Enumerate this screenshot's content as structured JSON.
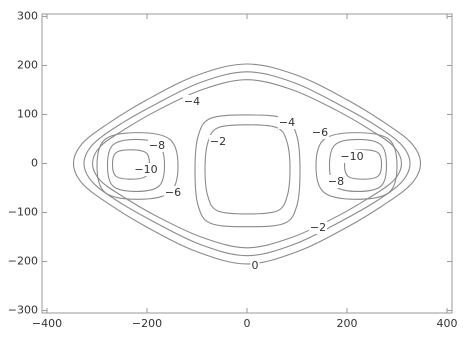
{
  "chart_data": {
    "type": "contour",
    "color": "#8a8a8a",
    "xlim": [
      -410,
      410
    ],
    "ylim": [
      -305,
      305
    ],
    "xticks": [
      {
        "value": -400,
        "label": "−400"
      },
      {
        "value": -200,
        "label": "−200"
      },
      0,
      200,
      400
    ],
    "yticks": [
      {
        "value": -300,
        "label": "−300"
      },
      {
        "value": -200,
        "label": "−200"
      },
      {
        "value": -100,
        "label": "−100"
      },
      0,
      100,
      200,
      300
    ],
    "contours": [
      {
        "level": 0,
        "x": [
          347,
          330,
          280,
          200,
          100,
          0,
          -100,
          -200,
          -280,
          -330,
          -347,
          -330,
          -280,
          -200,
          -100,
          0,
          100,
          200,
          280,
          330
        ],
        "y": [
          0,
          40,
          80,
          130,
          180,
          203,
          180,
          130,
          80,
          40,
          0,
          -40,
          -80,
          -130,
          -180,
          -205,
          -180,
          -130,
          -80,
          -40
        ]
      },
      {
        "level": -2,
        "label": "−2",
        "x": [
          326,
          310,
          263,
          188,
          94,
          0,
          -94,
          -188,
          -263,
          -310,
          -326,
          -310,
          -263,
          -188,
          -94,
          0,
          94,
          188,
          263,
          310
        ],
        "y": [
          0,
          37,
          74,
          118,
          165,
          187,
          165,
          118,
          74,
          37,
          0,
          -37,
          -74,
          -118,
          -165,
          -188,
          -165,
          -118,
          -74,
          -37
        ]
      },
      {
        "level": -4,
        "label": "−4",
        "x": [
          309,
          294,
          249,
          178,
          89,
          0,
          -89,
          -178,
          -249,
          -294,
          -309,
          -294,
          -249,
          -178,
          -89,
          0,
          89,
          178,
          249,
          294
        ],
        "y": [
          0,
          34,
          67,
          109,
          151,
          171,
          151,
          109,
          67,
          34,
          0,
          -34,
          -67,
          -109,
          -151,
          -172,
          -151,
          -109,
          -67,
          -34
        ]
      },
      {
        "level": -4,
        "label": "−4",
        "x": [
          106,
          100,
          75,
          1,
          -73,
          -98,
          -104,
          -98,
          -73,
          1,
          75,
          100
        ],
        "y": [
          -15,
          55,
          92,
          99,
          92,
          55,
          -15,
          -85,
          -122,
          -129,
          -122,
          -85
        ]
      },
      {
        "level": -2,
        "label": "−2",
        "x": [
          86,
          80,
          60,
          1,
          -58,
          -78,
          -84,
          -78,
          -58,
          1,
          60,
          80
        ],
        "y": [
          -12,
          44,
          73,
          79,
          73,
          44,
          -12,
          -68,
          -97,
          -103,
          -97,
          -68
        ]
      },
      {
        "level": -6,
        "label": "−6",
        "x": [
          -138,
          -154,
          -219,
          -284,
          -300,
          -284,
          -219,
          -154
        ],
        "y": [
          -5,
          49,
          63,
          49,
          -5,
          -59,
          -73,
          -59
        ]
      },
      {
        "level": -6,
        "label": "−6",
        "x": [
          138,
          154,
          219,
          284,
          300,
          284,
          219,
          154
        ],
        "y": [
          -5,
          49,
          63,
          49,
          -5,
          -59,
          -73,
          -59
        ]
      },
      {
        "level": -8,
        "label": "−8",
        "x": [
          -165,
          -176,
          -222,
          -268,
          -279,
          -268,
          -222,
          -176
        ],
        "y": [
          -4,
          38,
          49,
          38,
          -4,
          -46,
          -57,
          -46
        ]
      },
      {
        "level": -8,
        "label": "−8",
        "x": [
          165,
          176,
          222,
          268,
          279,
          268,
          222,
          176
        ],
        "y": [
          -4,
          38,
          49,
          38,
          -4,
          -46,
          -57,
          -46
        ]
      },
      {
        "level": -10,
        "label": "−10",
        "x": [
          -195,
          -202,
          -232,
          -262,
          -269,
          -262,
          -232,
          -202
        ],
        "y": [
          -2,
          22,
          28,
          22,
          -2,
          -26,
          -32,
          -26
        ]
      },
      {
        "level": -10,
        "label": "−10",
        "x": [
          195,
          202,
          232,
          262,
          269,
          262,
          232,
          202
        ],
        "y": [
          -2,
          22,
          28,
          22,
          -2,
          -26,
          -32,
          -26
        ]
      }
    ]
  }
}
